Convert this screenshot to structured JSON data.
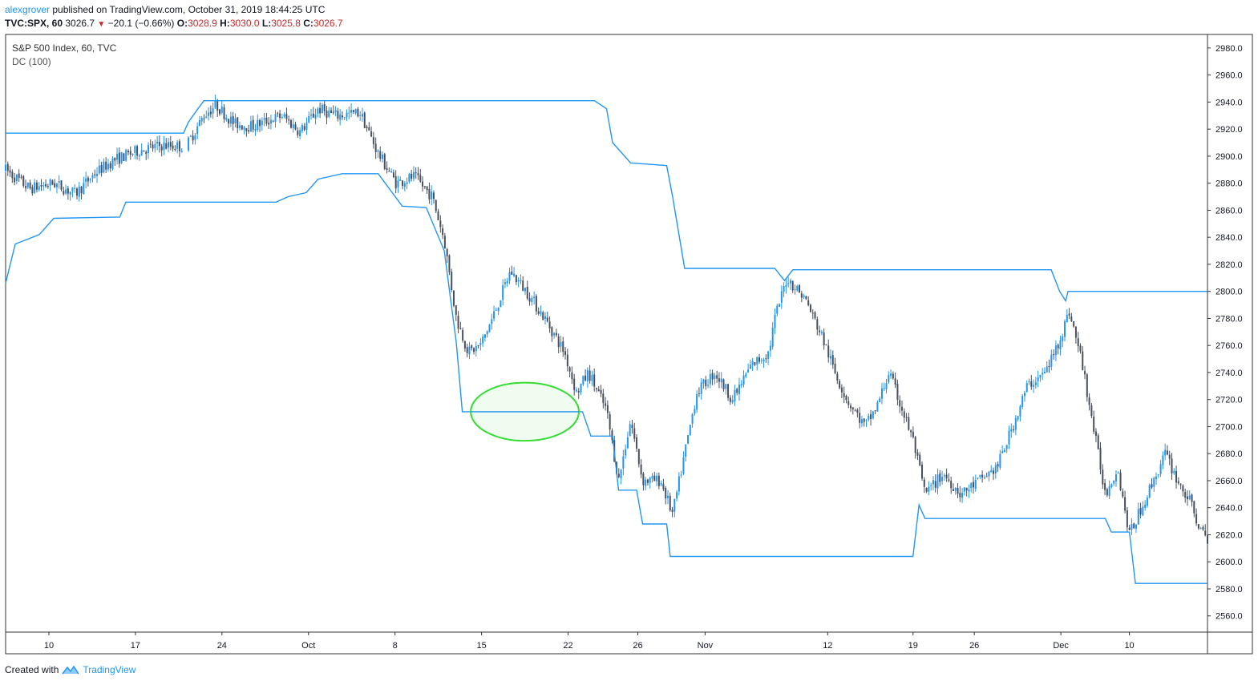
{
  "header": {
    "username": "alexgrover",
    "published_text": " published on TradingView.com, October 31, 2019 18:44:25 UTC",
    "symbol": "TVC:SPX, 60",
    "last": "3026.7",
    "change": "−20.1 (−0.66%)",
    "o_label": "O:",
    "o_value": "3028.9",
    "h_label": "H:",
    "h_value": "3030.0",
    "l_label": "L:",
    "l_value": "3025.8",
    "c_label": "C:",
    "c_value": "3026.7"
  },
  "legend": {
    "series_title": "S&P 500 Index, 60, TVC",
    "indicator": "DC (100)"
  },
  "footer": {
    "created_with": "Created with",
    "brand": "TradingView"
  },
  "colors": {
    "up": "#2196f3",
    "down": "#4a4f5e",
    "channel": "#2196f3",
    "highlight_stroke": "#33dd33",
    "highlight_fill": "#ebfbea",
    "down_arrow": "#c62828"
  },
  "chart_data": {
    "type": "candlestick",
    "ylim": [
      2548,
      2990
    ],
    "y_ticks": [
      2980.0,
      2960.0,
      2940.0,
      2920.0,
      2900.0,
      2880.0,
      2860.0,
      2840.0,
      2820.0,
      2800.0,
      2780.0,
      2760.0,
      2740.0,
      2720.0,
      2700.0,
      2680.0,
      2660.0,
      2640.0,
      2620.0,
      2600.0,
      2580.0,
      2560.0
    ],
    "x_ticks": [
      {
        "label": "10",
        "t": 0.036
      },
      {
        "label": "17",
        "t": 0.108
      },
      {
        "label": "24",
        "t": 0.18
      },
      {
        "label": "Oct",
        "t": 0.252
      },
      {
        "label": "8",
        "t": 0.324
      },
      {
        "label": "15",
        "t": 0.396
      },
      {
        "label": "22",
        "t": 0.468
      },
      {
        "label": "26",
        "t": 0.526
      },
      {
        "label": "Nov",
        "t": 0.582
      },
      {
        "label": "12",
        "t": 0.684
      },
      {
        "label": "19",
        "t": 0.755
      },
      {
        "label": "26",
        "t": 0.806
      },
      {
        "label": "Dec",
        "t": 0.878
      },
      {
        "label": "10",
        "t": 0.935
      }
    ],
    "price_path": [
      [
        0.0,
        2890
      ],
      [
        0.02,
        2876
      ],
      [
        0.04,
        2880
      ],
      [
        0.058,
        2872
      ],
      [
        0.075,
        2888
      ],
      [
        0.09,
        2897
      ],
      [
        0.11,
        2904
      ],
      [
        0.13,
        2908
      ],
      [
        0.15,
        2907
      ],
      [
        0.165,
        2930
      ],
      [
        0.175,
        2938
      ],
      [
        0.19,
        2924
      ],
      [
        0.205,
        2922
      ],
      [
        0.23,
        2930
      ],
      [
        0.245,
        2918
      ],
      [
        0.26,
        2935
      ],
      [
        0.275,
        2930
      ],
      [
        0.295,
        2932
      ],
      [
        0.3,
        2922
      ],
      [
        0.31,
        2902
      ],
      [
        0.325,
        2880
      ],
      [
        0.34,
        2885
      ],
      [
        0.355,
        2870
      ],
      [
        0.365,
        2838
      ],
      [
        0.375,
        2780
      ],
      [
        0.385,
        2755
      ],
      [
        0.395,
        2760
      ],
      [
        0.405,
        2780
      ],
      [
        0.42,
        2815
      ],
      [
        0.435,
        2798
      ],
      [
        0.45,
        2778
      ],
      [
        0.465,
        2755
      ],
      [
        0.475,
        2725
      ],
      [
        0.485,
        2740
      ],
      [
        0.5,
        2712
      ],
      [
        0.51,
        2660
      ],
      [
        0.52,
        2705
      ],
      [
        0.53,
        2660
      ],
      [
        0.545,
        2660
      ],
      [
        0.555,
        2635
      ],
      [
        0.565,
        2680
      ],
      [
        0.575,
        2725
      ],
      [
        0.59,
        2740
      ],
      [
        0.605,
        2720
      ],
      [
        0.62,
        2745
      ],
      [
        0.635,
        2755
      ],
      [
        0.64,
        2780
      ],
      [
        0.65,
        2810
      ],
      [
        0.665,
        2795
      ],
      [
        0.68,
        2765
      ],
      [
        0.69,
        2740
      ],
      [
        0.7,
        2720
      ],
      [
        0.715,
        2700
      ],
      [
        0.725,
        2715
      ],
      [
        0.735,
        2740
      ],
      [
        0.745,
        2715
      ],
      [
        0.755,
        2690
      ],
      [
        0.765,
        2650
      ],
      [
        0.78,
        2665
      ],
      [
        0.795,
        2650
      ],
      [
        0.81,
        2660
      ],
      [
        0.825,
        2670
      ],
      [
        0.84,
        2705
      ],
      [
        0.85,
        2730
      ],
      [
        0.865,
        2740
      ],
      [
        0.875,
        2760
      ],
      [
        0.885,
        2785
      ],
      [
        0.895,
        2750
      ],
      [
        0.905,
        2700
      ],
      [
        0.915,
        2650
      ],
      [
        0.925,
        2670
      ],
      [
        0.935,
        2620
      ],
      [
        0.945,
        2640
      ],
      [
        0.955,
        2660
      ],
      [
        0.965,
        2680
      ],
      [
        0.975,
        2660
      ],
      [
        0.985,
        2645
      ],
      [
        0.995,
        2622
      ],
      [
        1.0,
        2615
      ]
    ],
    "gaps": [
      {
        "start": 0.148,
        "end": 0.152
      }
    ],
    "channel_upper": [
      [
        0.0,
        2917
      ],
      [
        0.148,
        2917
      ],
      [
        0.152,
        2925
      ],
      [
        0.16,
        2935
      ],
      [
        0.165,
        2941
      ],
      [
        0.49,
        2941
      ],
      [
        0.5,
        2935
      ],
      [
        0.505,
        2910
      ],
      [
        0.52,
        2895
      ],
      [
        0.55,
        2893
      ],
      [
        0.555,
        2870
      ],
      [
        0.565,
        2817
      ],
      [
        0.64,
        2817
      ],
      [
        0.648,
        2808
      ],
      [
        0.655,
        2816
      ],
      [
        0.87,
        2816
      ],
      [
        0.877,
        2800
      ],
      [
        0.882,
        2793
      ],
      [
        0.884,
        2800
      ],
      [
        1.0,
        2800
      ]
    ],
    "channel_lower": [
      [
        0.0,
        2806
      ],
      [
        0.008,
        2835
      ],
      [
        0.028,
        2842
      ],
      [
        0.04,
        2854
      ],
      [
        0.095,
        2855
      ],
      [
        0.1,
        2866
      ],
      [
        0.225,
        2866
      ],
      [
        0.235,
        2870
      ],
      [
        0.25,
        2873
      ],
      [
        0.26,
        2883
      ],
      [
        0.28,
        2887
      ],
      [
        0.31,
        2887
      ],
      [
        0.32,
        2875
      ],
      [
        0.33,
        2863
      ],
      [
        0.35,
        2862
      ],
      [
        0.365,
        2830
      ],
      [
        0.375,
        2762
      ],
      [
        0.38,
        2711
      ],
      [
        0.48,
        2711
      ],
      [
        0.487,
        2693
      ],
      [
        0.505,
        2693
      ],
      [
        0.51,
        2653
      ],
      [
        0.525,
        2653
      ],
      [
        0.53,
        2628
      ],
      [
        0.55,
        2628
      ],
      [
        0.553,
        2604
      ],
      [
        0.755,
        2604
      ],
      [
        0.76,
        2642
      ],
      [
        0.765,
        2632
      ],
      [
        0.915,
        2632
      ],
      [
        0.92,
        2622
      ],
      [
        0.935,
        2622
      ],
      [
        0.94,
        2584
      ],
      [
        1.0,
        2584
      ]
    ],
    "highlight": {
      "center_t": 0.432,
      "center_price": 2711,
      "rx_t": 0.045,
      "ry_price": 21.5
    }
  }
}
